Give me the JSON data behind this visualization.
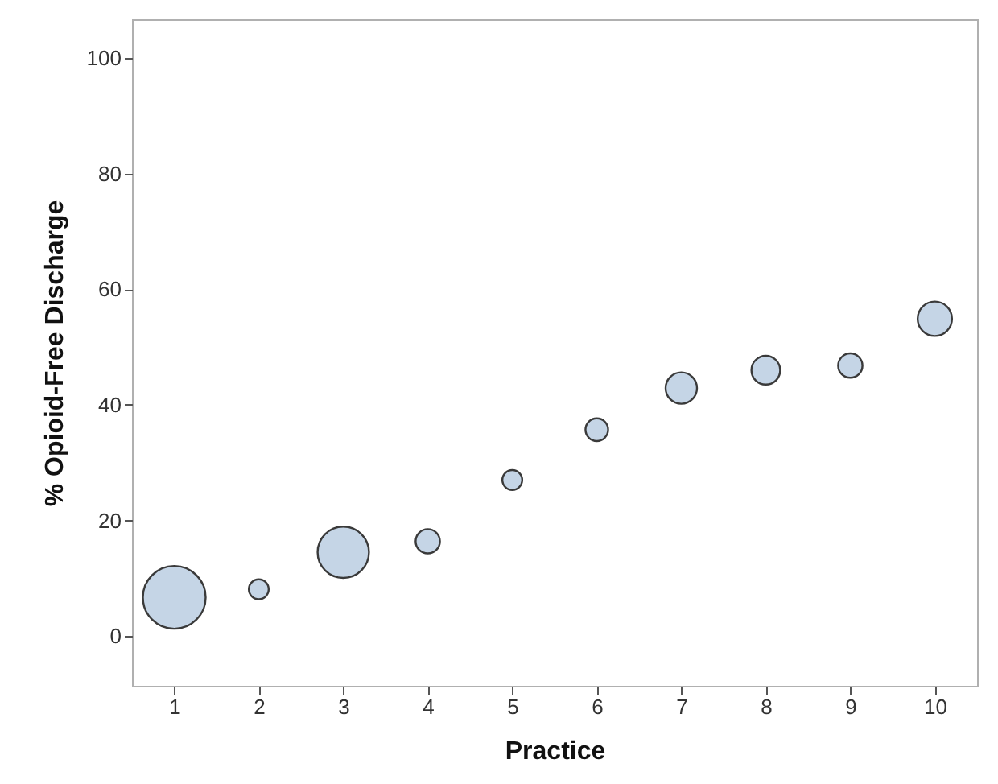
{
  "chart_data": {
    "type": "bubble",
    "xlabel": "Practice",
    "ylabel": "% Opioid-Free Discharge",
    "x": [
      1,
      2,
      3,
      4,
      5,
      6,
      7,
      8,
      9,
      10
    ],
    "values": [
      6.7,
      8.1,
      14.5,
      16.4,
      27,
      35.7,
      42.9,
      46,
      46.8,
      54.9
    ],
    "sizes": [
      1,
      0.1,
      0.67,
      0.15,
      0.1,
      0.13,
      0.25,
      0.21,
      0.15,
      0.3
    ],
    "color": "#c5d5e6",
    "xlim": [
      0.5,
      10.5
    ],
    "xticks": [
      1,
      2,
      3,
      4,
      5,
      6,
      7,
      8,
      9,
      10
    ],
    "ylim": [
      -8.6,
      106.7
    ],
    "yticks": [
      0,
      20,
      40,
      60,
      80,
      100
    ],
    "grid": false
  }
}
